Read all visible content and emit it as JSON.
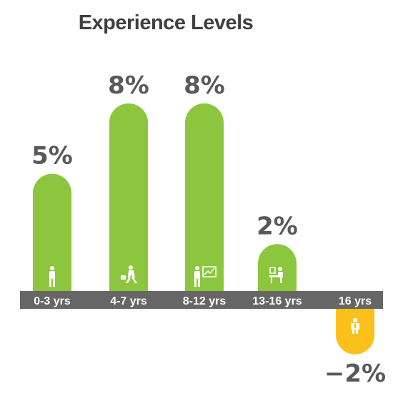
{
  "chart_data": {
    "type": "bar",
    "title": "Experience Levels",
    "categories": [
      "0-3 yrs",
      "4-7 yrs",
      "8-12 yrs",
      "13-16 yrs",
      "16 yrs"
    ],
    "values": [
      5,
      8,
      8,
      2,
      -2
    ],
    "value_labels": [
      "5%",
      "8%",
      "8%",
      "2%",
      "−2%"
    ],
    "unit": "%",
    "ylim": [
      -2,
      8
    ],
    "grid": false,
    "legend": "none",
    "icons": [
      "standing-person-icon",
      "walking-businessman-icon",
      "presenter-chart-icon",
      "desk-worker-icon",
      "senior-manager-icon"
    ]
  },
  "colors": {
    "positive_bar": "#8cc63f",
    "negative_bar": "#fcc01a",
    "axis_band": "#666666",
    "title": "#3f3f3f",
    "value_text": "#595959",
    "category_text": "#ffffff"
  }
}
